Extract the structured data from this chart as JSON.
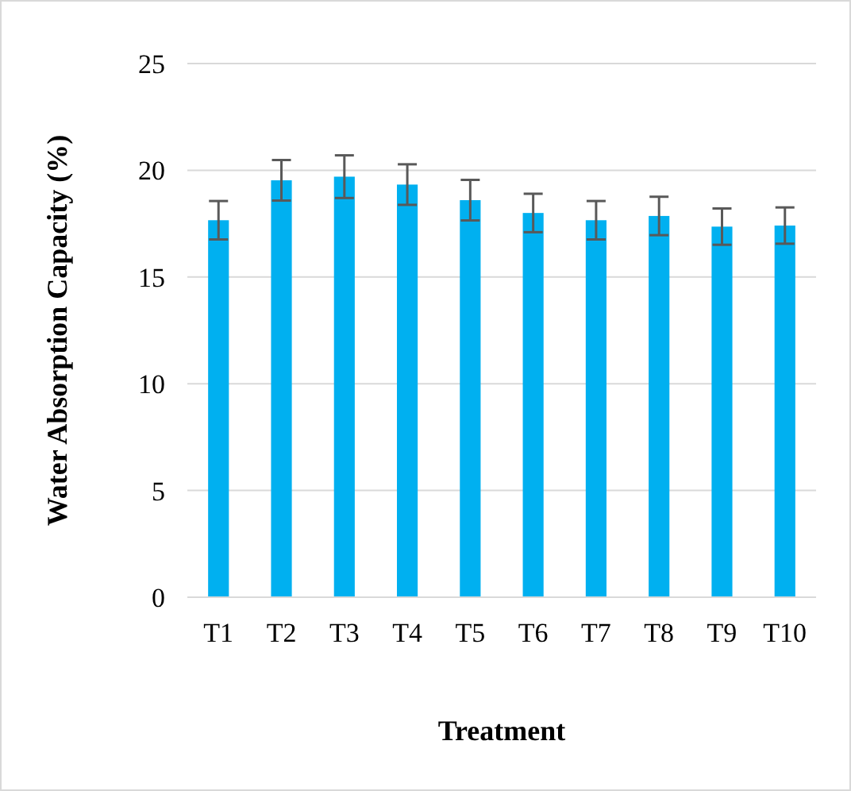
{
  "chart_data": {
    "type": "bar",
    "xlabel": "Treatment",
    "ylabel": "Water Absorption Capacity (%)",
    "categories": [
      "T1",
      "T2",
      "T3",
      "T4",
      "T5",
      "T6",
      "T7",
      "T8",
      "T9",
      "T10"
    ],
    "values": [
      17.66,
      19.53,
      19.7,
      19.33,
      18.6,
      18.0,
      17.66,
      17.86,
      17.36,
      17.41
    ],
    "errors": [
      0.9,
      0.95,
      1.0,
      0.95,
      0.95,
      0.9,
      0.9,
      0.9,
      0.85,
      0.85
    ],
    "color": "#00b0f0",
    "ylim": [
      0,
      25
    ],
    "yticks": [
      0,
      5,
      10,
      15,
      20,
      25
    ],
    "grid": "y"
  }
}
